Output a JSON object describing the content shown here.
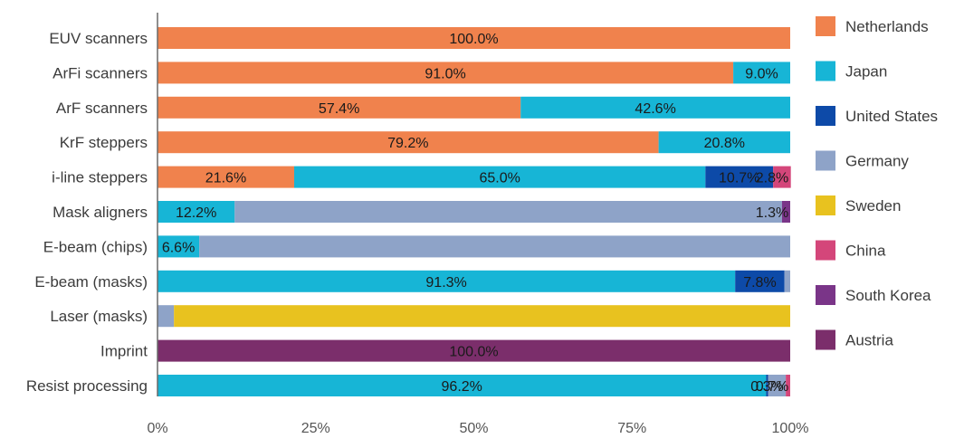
{
  "chart_data": {
    "type": "bar",
    "orientation": "horizontal",
    "stacked": true,
    "title": "",
    "xlabel": "",
    "ylabel": "",
    "xlim": [
      0,
      100
    ],
    "x_ticks": [
      "0%",
      "25%",
      "50%",
      "75%",
      "100%"
    ],
    "grid": false,
    "legend_position": "right",
    "categories": [
      "EUV scanners",
      "ArFi scanners",
      "ArF scanners",
      "KrF steppers",
      "i-line steppers",
      "Mask aligners",
      "E-beam (chips)",
      "E-beam (masks)",
      "Laser (masks)",
      "Imprint",
      "Resist processing"
    ],
    "series": [
      {
        "name": "Netherlands",
        "color": "#f0824d",
        "values": [
          100.0,
          91.0,
          57.4,
          79.2,
          21.6,
          0,
          0,
          0,
          0,
          0,
          0
        ],
        "labels": [
          "100.0%",
          "91.0%",
          "57.4%",
          "79.2%",
          "21.6%",
          "",
          "",
          "",
          "",
          "",
          ""
        ]
      },
      {
        "name": "Japan",
        "color": "#17b5d6",
        "values": [
          0,
          9.0,
          42.6,
          20.8,
          65.0,
          12.2,
          6.6,
          91.3,
          0,
          0,
          96.2
        ],
        "labels": [
          "",
          "9.0%",
          "42.6%",
          "20.8%",
          "65.0%",
          "12.2%",
          "6.6%",
          "91.3%",
          "",
          "",
          "96.2%"
        ]
      },
      {
        "name": "United States",
        "color": "#0d4aa8",
        "values": [
          0,
          0,
          0,
          0,
          10.7,
          0,
          0,
          7.8,
          0,
          0,
          0.3
        ],
        "labels": [
          "",
          "",
          "",
          "",
          "10.7%",
          "",
          "",
          "7.8%",
          "",
          "",
          "0.3%"
        ]
      },
      {
        "name": "Germany",
        "color": "#8ea3c8",
        "values": [
          0,
          0,
          0,
          0,
          0,
          86.5,
          93.4,
          0.9,
          2.6,
          0,
          2.8
        ],
        "labels": [
          "",
          "",
          "",
          "",
          "",
          "",
          "",
          "",
          "",
          "",
          ""
        ]
      },
      {
        "name": "Sweden",
        "color": "#e8c21f",
        "values": [
          0,
          0,
          0,
          0,
          0,
          0,
          0,
          0,
          97.4,
          0,
          0
        ],
        "labels": [
          "",
          "",
          "",
          "",
          "",
          "",
          "",
          "",
          "",
          "",
          ""
        ]
      },
      {
        "name": "China",
        "color": "#d4467a",
        "values": [
          0,
          0,
          0,
          0,
          2.8,
          0,
          0,
          0,
          0,
          0,
          0.7
        ],
        "labels": [
          "",
          "",
          "",
          "",
          "2.8%",
          "",
          "",
          "",
          "",
          "",
          "0.7%"
        ]
      },
      {
        "name": "South Korea",
        "color": "#7a3588",
        "values": [
          0,
          0,
          0,
          0,
          0,
          1.3,
          0,
          0,
          0,
          0,
          0
        ],
        "labels": [
          "",
          "",
          "",
          "",
          "",
          "1.3%",
          "",
          "",
          "",
          "",
          ""
        ]
      },
      {
        "name": "Austria",
        "color": "#7b2e6b",
        "values": [
          0,
          0,
          0,
          0,
          0,
          0,
          0,
          0,
          0,
          100.0,
          0
        ],
        "labels": [
          "",
          "",
          "",
          "",
          "",
          "",
          "",
          "",
          "",
          "100.0%",
          ""
        ]
      }
    ]
  }
}
